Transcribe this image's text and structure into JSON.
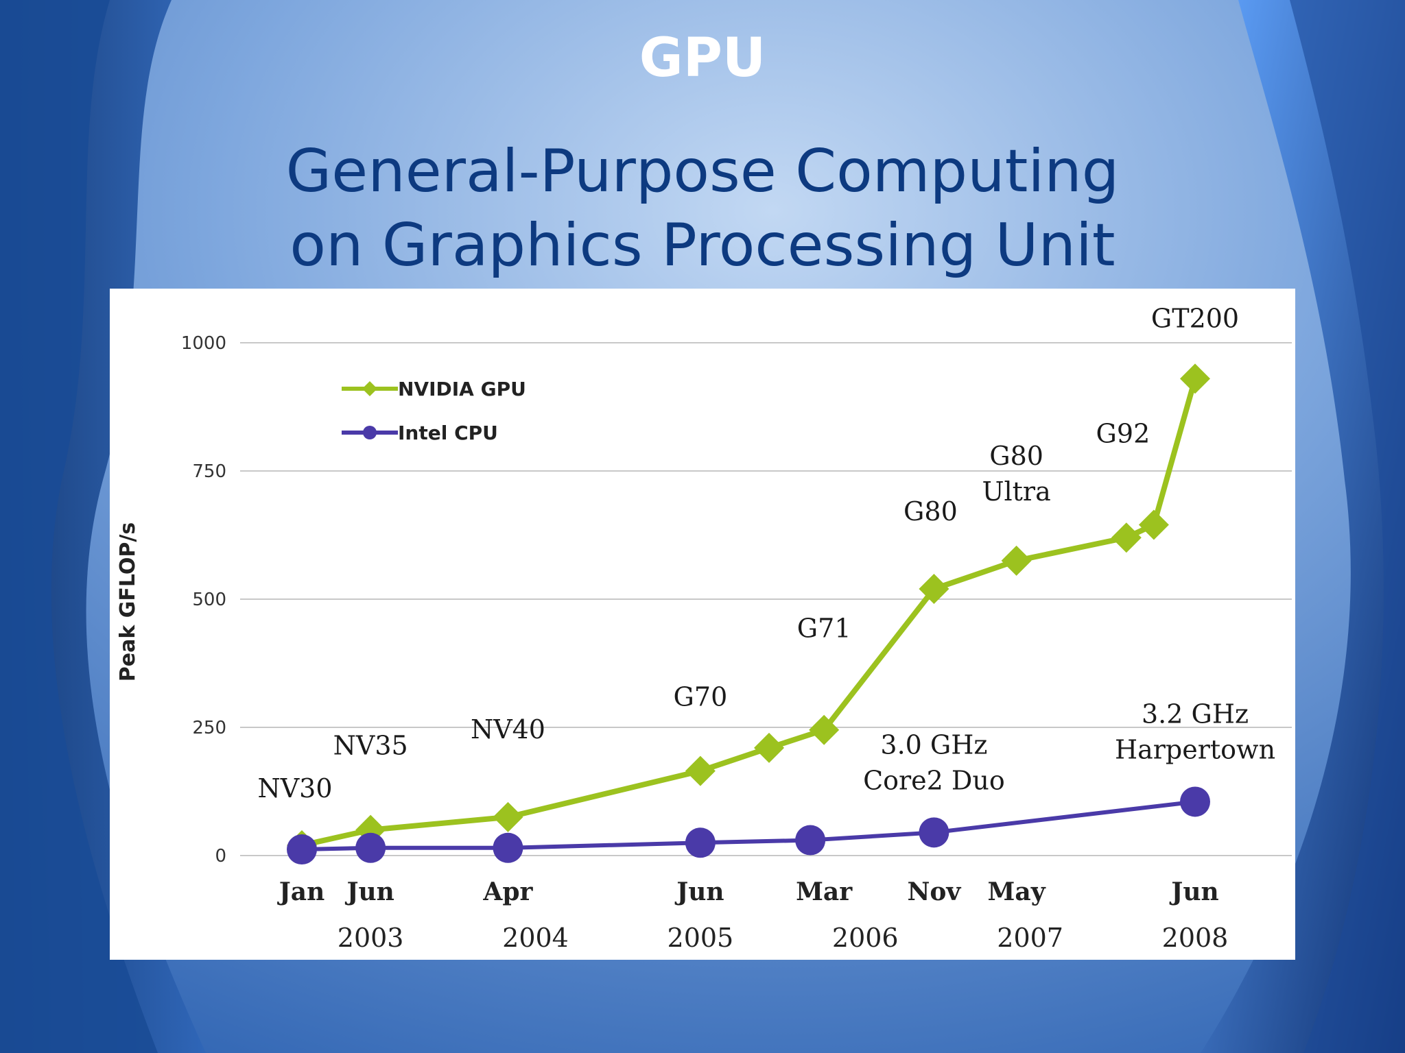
{
  "slide": {
    "title": "GPU",
    "subtitle_line1": "General-Purpose Computing",
    "subtitle_line2": "on Graphics Processing Unit"
  },
  "colors": {
    "background": "#2a63b5",
    "title": "#ffffff",
    "subtitle": "#0d3a80",
    "gpu": "#9cc21f",
    "cpu": "#4a3aa8"
  },
  "chart_data": {
    "type": "line",
    "ylabel": "Peak GFLOP/s",
    "ylim": [
      0,
      1000
    ],
    "yticks": [
      0,
      250,
      500,
      750,
      1000
    ],
    "grid": "horizontal",
    "legend_position": "top-left",
    "x_month_labels": [
      "Jan",
      "Jun",
      "Apr",
      "Jun",
      "Mar",
      "Nov",
      "May",
      "Jun"
    ],
    "x_month_dates": [
      "2003-01",
      "2003-06",
      "2004-04",
      "2005-06",
      "2006-03",
      "2006-11",
      "2007-05",
      "2008-06"
    ],
    "x_year_labels": [
      "2003",
      "2004",
      "2005",
      "2006",
      "2007",
      "2008"
    ],
    "x_year_dates": [
      "2003-06",
      "2004-06",
      "2005-06",
      "2006-06",
      "2007-06",
      "2008-06"
    ],
    "series": [
      {
        "name": "NVIDIA GPU",
        "color": "#9cc21f",
        "marker": "diamond",
        "points": [
          {
            "x": "2003-01",
            "y": 20,
            "label": "NV30"
          },
          {
            "x": "2003-06",
            "y": 50,
            "label": "NV35"
          },
          {
            "x": "2004-04",
            "y": 75,
            "label": "NV40"
          },
          {
            "x": "2005-06",
            "y": 165,
            "label": "G70"
          },
          {
            "x": "2005-11",
            "y": 210,
            "label": ""
          },
          {
            "x": "2006-03",
            "y": 245,
            "label": "G71"
          },
          {
            "x": "2006-11",
            "y": 520,
            "label": "G80"
          },
          {
            "x": "2007-05",
            "y": 575,
            "label": "G80 Ultra"
          },
          {
            "x": "2008-01",
            "y": 620,
            "label": ""
          },
          {
            "x": "2008-03",
            "y": 645,
            "label": "G92"
          },
          {
            "x": "2008-06",
            "y": 930,
            "label": "GT200"
          }
        ]
      },
      {
        "name": "Intel CPU",
        "color": "#4a3aa8",
        "marker": "circle",
        "points": [
          {
            "x": "2003-01",
            "y": 12,
            "label": ""
          },
          {
            "x": "2003-06",
            "y": 15,
            "label": ""
          },
          {
            "x": "2004-04",
            "y": 15,
            "label": ""
          },
          {
            "x": "2005-06",
            "y": 25,
            "label": ""
          },
          {
            "x": "2006-02",
            "y": 30,
            "label": ""
          },
          {
            "x": "2006-11",
            "y": 45,
            "label": "3.0 GHz Core2 Duo"
          },
          {
            "x": "2008-06",
            "y": 105,
            "label": "3.2 GHz Harpertown"
          }
        ]
      }
    ]
  }
}
